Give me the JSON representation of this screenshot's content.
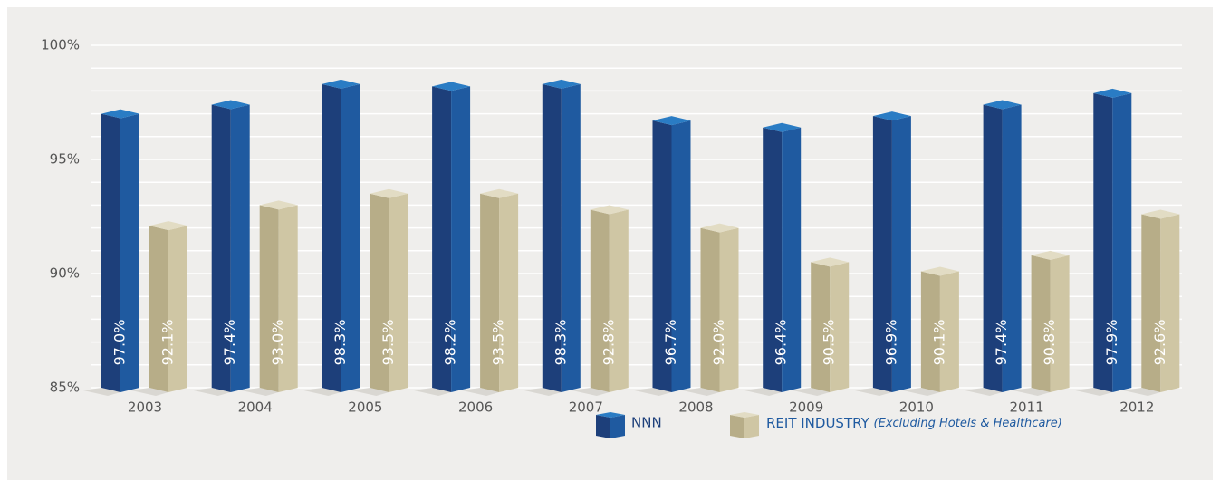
{
  "chart_data": {
    "type": "bar3d",
    "categories": [
      "2003",
      "2004",
      "2005",
      "2006",
      "2007",
      "2008",
      "2009",
      "2010",
      "2011",
      "2012"
    ],
    "series": [
      {
        "name": "NNN",
        "color": "#1d3f7a",
        "side_color": "#1f5aa0",
        "top_color": "#2a7cc4",
        "values": [
          97.0,
          97.4,
          98.3,
          98.2,
          98.3,
          96.7,
          96.4,
          96.9,
          97.4,
          97.9
        ],
        "value_labels": [
          "97.0%",
          "97.4%",
          "98.3%",
          "98.2%",
          "98.3%",
          "96.7%",
          "96.4%",
          "96.9%",
          "97.4%",
          "97.9%"
        ]
      },
      {
        "name": "REIT INDUSTRY",
        "color": "#b7ad88",
        "side_color": "#cfc6a4",
        "top_color": "#e2dcc4",
        "values": [
          92.1,
          93.0,
          93.5,
          93.5,
          92.8,
          92.0,
          90.5,
          90.1,
          90.8,
          92.6
        ],
        "value_labels": [
          "92.1%",
          "93.0%",
          "93.5%",
          "93.5%",
          "92.8%",
          "92.0%",
          "90.5%",
          "90.1%",
          "90.8%",
          "92.6%"
        ]
      }
    ],
    "legend_note": "(Excluding Hotels & Healthcare)",
    "ylim": [
      85,
      100
    ],
    "yticks": [
      {
        "value": 85,
        "label": "85%"
      },
      {
        "value": 90,
        "label": "90%"
      },
      {
        "value": 95,
        "label": "95%"
      },
      {
        "value": 100,
        "label": "100%"
      }
    ],
    "yminorticks": [
      86,
      87,
      88,
      89,
      91,
      92,
      93,
      94,
      96,
      97,
      98,
      99
    ],
    "grid": true
  }
}
